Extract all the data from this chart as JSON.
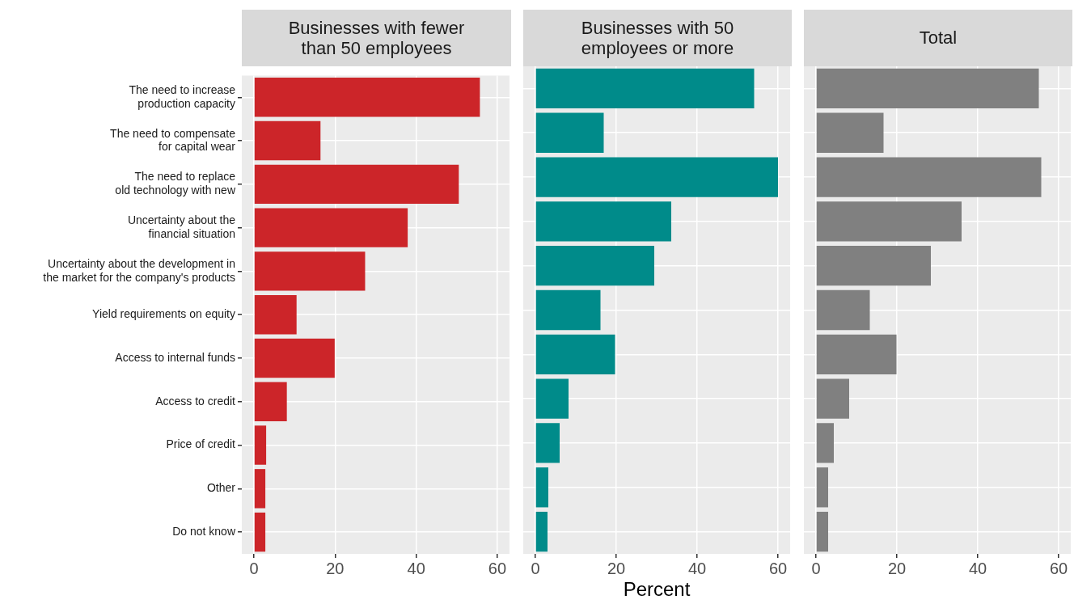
{
  "chart_data": [
    {
      "type": "bar",
      "orientation": "horizontal",
      "title": "Businesses with fewer\nthan 50 employees",
      "categories": [
        "The need to increase\nproduction capacity",
        "The need to compensate\nfor capital wear",
        "The need to replace\nold technology with new",
        "Uncertainty about the\nfinancial situation",
        "Uncertainty about the development in\nthe market for the company's products",
        "Yield requirements on equity",
        "Access to internal funds",
        "Access to credit",
        "Price of credit",
        "Other",
        "Do not know"
      ],
      "values": [
        55.7,
        16.4,
        50.5,
        37.9,
        27.4,
        10.5,
        19.9,
        8.1,
        3.0,
        2.8,
        2.8
      ],
      "color": "#cc2529",
      "xlim": [
        -3,
        63
      ],
      "xticks": [
        0,
        20,
        40,
        60
      ],
      "grid": true
    },
    {
      "type": "bar",
      "orientation": "horizontal",
      "title": "Businesses with 50\nemployees or more",
      "xlabel": "Percent",
      "categories": [
        null,
        null,
        null,
        null,
        null,
        null,
        null,
        null,
        null,
        null,
        null
      ],
      "values": [
        54.1,
        16.9,
        60.0,
        33.6,
        29.4,
        16.1,
        19.7,
        8.2,
        6.0,
        3.2,
        3.0
      ],
      "color": "#008b8a",
      "xlim": [
        -3,
        63
      ],
      "xticks": [
        0,
        20,
        40,
        60
      ],
      "grid": true,
      "tick_labels": "x"
    },
    {
      "type": "bar",
      "orientation": "horizontal",
      "title": "Total",
      "categories": [
        null,
        null,
        null,
        null,
        null,
        null,
        null,
        null,
        null,
        null,
        null
      ],
      "values": [
        55.1,
        16.7,
        55.7,
        36.0,
        28.4,
        13.3,
        19.9,
        8.2,
        4.4,
        3.0,
        3.0
      ],
      "color": "#808080",
      "xlim": [
        -3,
        63
      ],
      "xticks": [
        0,
        20,
        40,
        60
      ],
      "grid": true,
      "tick_labels": "x"
    }
  ]
}
